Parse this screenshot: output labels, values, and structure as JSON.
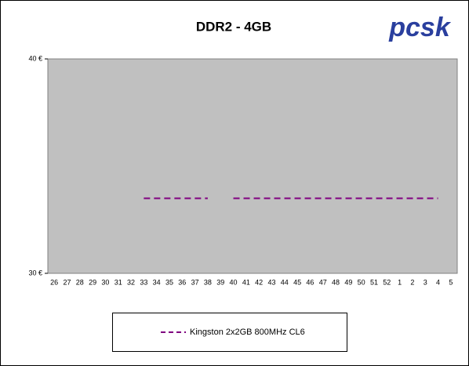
{
  "chart_data": {
    "type": "line",
    "title": "DDR2 - 4GB",
    "logo": "pcsk",
    "categories": [
      "26",
      "27",
      "28",
      "29",
      "30",
      "31",
      "32",
      "33",
      "34",
      "35",
      "36",
      "37",
      "38",
      "39",
      "40",
      "41",
      "42",
      "43",
      "44",
      "45",
      "46",
      "47",
      "48",
      "49",
      "50",
      "51",
      "52",
      "1",
      "2",
      "3",
      "4",
      "5"
    ],
    "series": [
      {
        "name": "Kingston 2x2GB 800MHz CL6",
        "color": "#800080",
        "values": [
          null,
          null,
          null,
          null,
          null,
          null,
          null,
          33.5,
          33.5,
          33.5,
          33.5,
          33.5,
          33.5,
          null,
          33.5,
          33.5,
          33.5,
          33.5,
          33.5,
          33.5,
          33.5,
          33.5,
          33.5,
          33.5,
          33.5,
          33.5,
          33.5,
          33.5,
          33.5,
          33.5,
          33.5,
          null
        ]
      }
    ],
    "ylim": [
      30,
      40
    ],
    "yticks": [
      {
        "value": 30,
        "label": "30 €"
      },
      {
        "value": 40,
        "label": "40 €"
      }
    ]
  }
}
